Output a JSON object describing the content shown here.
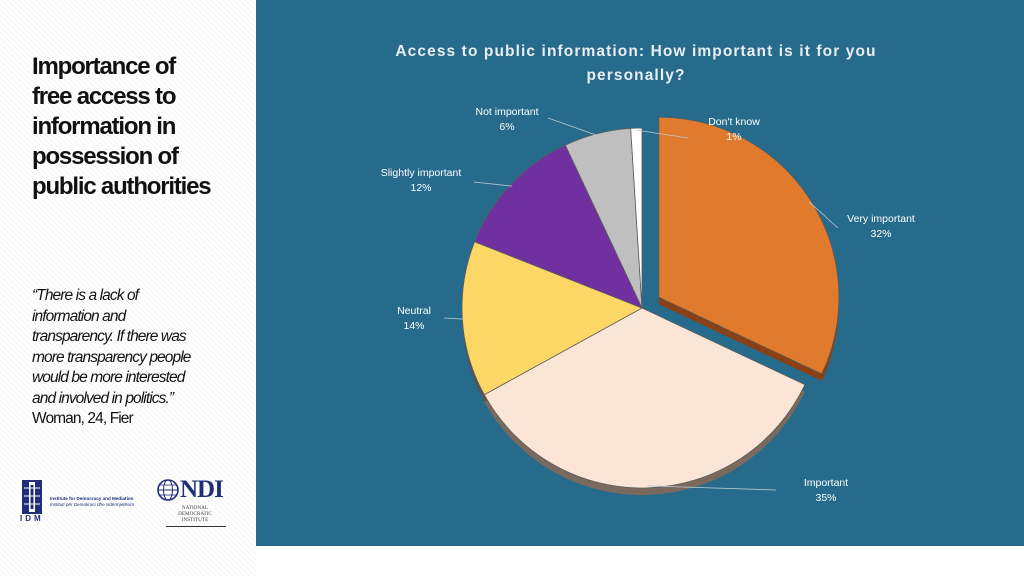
{
  "slide": {
    "title": "Importance of\nfree access to\ninformation in\npossession of\npublic authorities",
    "quote": "“There is a lack of\ninformation and\ntransparency. If there was\nmore transparency people\nwould be more interested\nand involved in politics.”",
    "attribution": "Woman, 24, Fier"
  },
  "logos": {
    "idm": {
      "letters": "IDM",
      "name_line1": "Institute for Democracy and Mediation",
      "name_line2": "Instituti për Demokraci dhe Ndërmjetësim",
      "icon": "idm-emblem-icon"
    },
    "ndi": {
      "wordmark": "NDI",
      "subtitle": "NATIONAL\nDEMOCRATIC\nINSTITUTE",
      "icon": "globe-icon"
    }
  },
  "colors": {
    "panel_background": "#266b8b",
    "very_important": "#e07b2e",
    "important": "#fbe5d6",
    "neutral": "#fcd766",
    "slightly_important": "#7030a0",
    "not_important": "#bfbfbf",
    "dont_know": "#ffffff"
  },
  "chart_data": {
    "type": "pie",
    "title": "Access to public information: How important is it for you personally?",
    "exploded": "Very important",
    "slices": [
      {
        "label": "Very important",
        "value": 32,
        "display": "32%",
        "color": "#e07b2e"
      },
      {
        "label": "Important",
        "value": 35,
        "display": "35%",
        "color": "#fbe5d6"
      },
      {
        "label": "Neutral",
        "value": 14,
        "display": "14%",
        "color": "#fcd766"
      },
      {
        "label": "Slightly important",
        "value": 12,
        "display": "12%",
        "color": "#7030a0"
      },
      {
        "label": "Not important",
        "value": 6,
        "display": "6%",
        "color": "#bfbfbf"
      },
      {
        "label": "Don't know",
        "value": 1,
        "display": "1%",
        "color": "#ffffff"
      }
    ]
  }
}
